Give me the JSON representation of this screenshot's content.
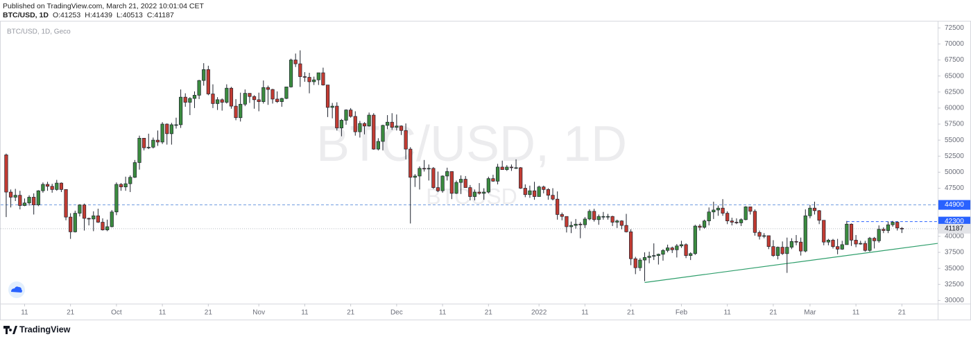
{
  "header": {
    "published": "Published on TradingView.com, March 21, 2022 10:01:04 CET",
    "symbol": "BTC/USD, 1D",
    "ohlc_labels": [
      "O:",
      "H:",
      "L:",
      "C:"
    ]
  },
  "chart_data": {
    "type": "candlestick",
    "legend_title": "BTC/USD, 1D, Geco",
    "watermark": "BTC/USD, 1D",
    "watermark_symbol": "BTCUSD",
    "up_color": "#3b8b3f",
    "down_color": "#c23b32",
    "grid": false,
    "open": [
      52700,
      46900,
      46100,
      46400,
      44800,
      45200,
      46100,
      44900,
      47100,
      48100,
      47800,
      47300,
      48300,
      47300,
      43000,
      40700,
      43600,
      44900,
      42800,
      42700,
      43200,
      42200,
      41000,
      41500,
      43800,
      48100,
      47700,
      48200,
      49200,
      51500,
      55300,
      53800,
      53900,
      55000,
      54700,
      57500,
      56000,
      57400,
      57400,
      61700,
      60900,
      61500,
      62000,
      64300,
      66000,
      62200,
      60700,
      61300,
      60900,
      63100,
      60300,
      58500,
      60600,
      62300,
      61800,
      61300,
      61000,
      63200,
      62900,
      61400,
      61000,
      61500,
      63300,
      67500,
      66900,
      64900,
      64800,
      64100,
      64400,
      65500,
      63600,
      60100,
      60300,
      56900,
      58100,
      59700,
      58700,
      56300,
      57600,
      57200,
      58900,
      53600,
      54800,
      57300,
      57800,
      57000,
      57200,
      56500,
      53600,
      49200,
      49400,
      50600,
      50500,
      50600,
      47600,
      47100,
      49400,
      50100,
      46700,
      48400,
      48900,
      47600,
      46200,
      46900,
      46700,
      46900,
      49000,
      48600,
      50800,
      50400,
      50800,
      50700,
      50700,
      47500,
      46500,
      47100,
      46200,
      47700,
      47300,
      46400,
      45800,
      43400,
      43100,
      41500,
      41700,
      41900,
      41800,
      42700,
      43900,
      42600,
      43100,
      43100,
      43100,
      42200,
      42400,
      41700,
      40700,
      36500,
      35100,
      36300,
      36700,
      36900,
      37000,
      37200,
      37800,
      38200,
      37900,
      38500,
      38700,
      37000,
      37300,
      41600,
      41400,
      42400,
      43800,
      44100,
      44400,
      43600,
      42400,
      42200,
      42100,
      42600,
      44600,
      43900,
      40600,
      40000,
      40100,
      38400,
      37000,
      38300,
      37300,
      38300,
      39200,
      39100,
      37700,
      43200,
      44400,
      44000,
      42500,
      39100,
      39400,
      38400,
      38000,
      38700,
      41900,
      39400,
      38800,
      38900,
      37800,
      39700,
      39300,
      41100,
      40900,
      41800,
      42200,
      41253
    ],
    "high": [
      52900,
      47300,
      47400,
      47100,
      45900,
      46400,
      46700,
      47200,
      48400,
      48500,
      48200,
      48800,
      48400,
      47300,
      43600,
      44000,
      45000,
      45100,
      42900,
      43900,
      44300,
      42800,
      42600,
      44100,
      48400,
      48300,
      49300,
      49500,
      51900,
      55700,
      55300,
      56000,
      55400,
      56500,
      57800,
      57600,
      57700,
      58500,
      62900,
      62300,
      61700,
      62600,
      64400,
      67000,
      66600,
      63700,
      61700,
      61500,
      63700,
      63300,
      61400,
      62400,
      62900,
      62300,
      62000,
      62400,
      64300,
      63500,
      63000,
      62600,
      61600,
      63300,
      67700,
      68500,
      69000,
      65600,
      65500,
      64900,
      65500,
      66300,
      63600,
      60800,
      60900,
      58300,
      59800,
      60000,
      59500,
      58000,
      57800,
      59300,
      59200,
      55300,
      57400,
      58900,
      59200,
      59000,
      57300,
      57600,
      53900,
      49700,
      50900,
      51900,
      51200,
      50800,
      50100,
      49500,
      50700,
      50100,
      48700,
      49500,
      49400,
      48000,
      47300,
      48300,
      47500,
      49300,
      49600,
      51300,
      51800,
      51100,
      51200,
      52000,
      50800,
      48100,
      47900,
      48500,
      47900,
      47900,
      47500,
      47500,
      47000,
      43700,
      43100,
      42300,
      42700,
      42200,
      43000,
      44200,
      44300,
      43400,
      43800,
      43500,
      43200,
      42600,
      42500,
      43500,
      41100,
      36800,
      36600,
      37500,
      37600,
      38900,
      37300,
      38000,
      38700,
      38400,
      38800,
      39300,
      38900,
      37500,
      41800,
      41900,
      42600,
      44500,
      45400,
      44800,
      45800,
      43900,
      42900,
      42800,
      42800,
      44700,
      44600,
      44200,
      40900,
      40500,
      40100,
      39400,
      38400,
      39200,
      39800,
      39700,
      40200,
      39800,
      44200,
      44900,
      45400,
      44100,
      42500,
      39600,
      39600,
      39600,
      39300,
      42400,
      42000,
      40200,
      39300,
      39300,
      39900,
      39900,
      41700,
      41400,
      42300,
      42400,
      42300,
      41439
    ],
    "low": [
      43000,
      44500,
      45500,
      44200,
      44700,
      44800,
      43400,
      44700,
      46800,
      47100,
      46800,
      47100,
      46900,
      42500,
      39600,
      40600,
      43100,
      40900,
      41700,
      40800,
      42100,
      40900,
      40800,
      41400,
      43300,
      47100,
      47100,
      46900,
      49100,
      50400,
      53400,
      53600,
      53700,
      54100,
      54400,
      54300,
      54300,
      56800,
      56900,
      60200,
      58900,
      60000,
      61400,
      63500,
      62000,
      60000,
      59700,
      59600,
      60700,
      59900,
      58100,
      57900,
      60300,
      60800,
      59900,
      59500,
      60700,
      60500,
      60700,
      60800,
      60200,
      61400,
      63200,
      66400,
      63300,
      64100,
      62300,
      63600,
      63600,
      63500,
      58600,
      58400,
      56500,
      55600,
      57400,
      58500,
      55700,
      55400,
      55900,
      57100,
      53500,
      53400,
      53400,
      56700,
      56600,
      56500,
      55800,
      52000,
      42000,
      47700,
      47300,
      50100,
      48700,
      47400,
      46900,
      46800,
      48700,
      45800,
      46600,
      46600,
      47600,
      45600,
      45600,
      46500,
      45700,
      46700,
      48500,
      48100,
      50400,
      50200,
      50200,
      50500,
      47400,
      46100,
      46000,
      45700,
      46200,
      46700,
      45700,
      45600,
      42600,
      42500,
      40600,
      40500,
      41200,
      39700,
      41300,
      42500,
      42300,
      41800,
      42600,
      42600,
      41600,
      41300,
      41100,
      40600,
      35500,
      34100,
      34600,
      33000,
      35800,
      36300,
      35600,
      36200,
      37500,
      37400,
      36700,
      38200,
      36600,
      36300,
      37100,
      40900,
      41200,
      41700,
      42700,
      43200,
      43200,
      41900,
      41700,
      41900,
      41600,
      42500,
      43400,
      40100,
      39500,
      39700,
      38000,
      36800,
      36400,
      37100,
      34300,
      38000,
      38600,
      37000,
      37500,
      42800,
      43400,
      41900,
      38600,
      38600,
      38100,
      37200,
      37900,
      38700,
      38500,
      38300,
      38700,
      37600,
      37600,
      38100,
      39000,
      40500,
      40500,
      41500,
      40900,
      40513
    ],
    "close": [
      46900,
      46100,
      46400,
      44800,
      45200,
      46100,
      44900,
      47100,
      48100,
      47800,
      47300,
      48300,
      47300,
      43000,
      40700,
      43600,
      44900,
      42800,
      42700,
      43200,
      42200,
      41000,
      41500,
      43800,
      48100,
      47700,
      48200,
      49200,
      51500,
      55300,
      53800,
      53900,
      55000,
      54700,
      57500,
      56000,
      57400,
      57400,
      61700,
      60900,
      61500,
      62000,
      64300,
      66000,
      62200,
      60700,
      61300,
      60900,
      63100,
      60300,
      58500,
      60600,
      62300,
      61800,
      61300,
      61000,
      63200,
      62900,
      61400,
      61000,
      61500,
      63300,
      67500,
      66900,
      64900,
      64800,
      64100,
      64400,
      65500,
      63600,
      60100,
      60300,
      56900,
      58100,
      59700,
      58700,
      56300,
      57600,
      57200,
      58900,
      53600,
      54800,
      57300,
      57800,
      57000,
      57200,
      56500,
      53600,
      49200,
      49400,
      50600,
      50500,
      50600,
      47600,
      47100,
      49400,
      50100,
      46700,
      48400,
      48900,
      47600,
      46200,
      46900,
      46700,
      46900,
      49000,
      48600,
      50800,
      50400,
      50800,
      50700,
      50700,
      47500,
      46500,
      47100,
      46200,
      47700,
      47300,
      46400,
      45800,
      43400,
      43100,
      41500,
      41700,
      41900,
      41800,
      42700,
      43900,
      42600,
      43100,
      43100,
      43100,
      42200,
      42400,
      41700,
      40700,
      36500,
      35100,
      36300,
      36700,
      36900,
      37000,
      37200,
      37800,
      38200,
      37900,
      38500,
      38700,
      37000,
      37300,
      41600,
      41400,
      42400,
      43800,
      44100,
      44400,
      43600,
      42400,
      42200,
      42100,
      42600,
      44600,
      43900,
      40600,
      40000,
      40100,
      38400,
      37000,
      38300,
      37300,
      38300,
      39200,
      39100,
      37700,
      43200,
      44400,
      44000,
      42500,
      39100,
      39400,
      38400,
      38000,
      38700,
      41900,
      39400,
      38800,
      38900,
      37800,
      39700,
      39300,
      41100,
      40900,
      41800,
      42200,
      41300,
      41187
    ],
    "xlim": [
      -1.2,
      202.8
    ],
    "xticks": [
      {
        "value": 4,
        "label": "11"
      },
      {
        "value": 14,
        "label": "21"
      },
      {
        "value": 24,
        "label": "Oct"
      },
      {
        "value": 34,
        "label": "11"
      },
      {
        "value": 44,
        "label": "21"
      },
      {
        "value": 55,
        "label": "Nov"
      },
      {
        "value": 65,
        "label": "11"
      },
      {
        "value": 75,
        "label": "21"
      },
      {
        "value": 85,
        "label": "Dec"
      },
      {
        "value": 95,
        "label": "11"
      },
      {
        "value": 105,
        "label": "21"
      },
      {
        "value": 116,
        "label": "2022"
      },
      {
        "value": 126,
        "label": "11"
      },
      {
        "value": 136,
        "label": "21"
      },
      {
        "value": 147,
        "label": "Feb"
      },
      {
        "value": 157,
        "label": "11"
      },
      {
        "value": 167,
        "label": "21"
      },
      {
        "value": 175,
        "label": "Mar"
      },
      {
        "value": 185,
        "label": "11"
      },
      {
        "value": 195,
        "label": "21"
      }
    ],
    "ylim": [
      29500,
      73500
    ],
    "yticks": [
      30000,
      32500,
      35000,
      37500,
      40000,
      42500,
      45000,
      47500,
      50000,
      52500,
      55000,
      57500,
      60000,
      62500,
      65000,
      67500,
      70000,
      72500
    ],
    "hlines": [
      {
        "value": 44900,
        "color": "#6f9be0",
        "label_color": "#2962ff"
      },
      {
        "value": 42300,
        "x_from": 183,
        "color": "#2962ff",
        "label_color": "#2962ff"
      }
    ],
    "last_price_color": "#b8bcc4",
    "trendline": {
      "x": [
        139,
        202.8
      ],
      "y": [
        32800,
        38900
      ],
      "color": "#2e9e6b"
    }
  },
  "footer": {
    "brand": "TradingView"
  }
}
